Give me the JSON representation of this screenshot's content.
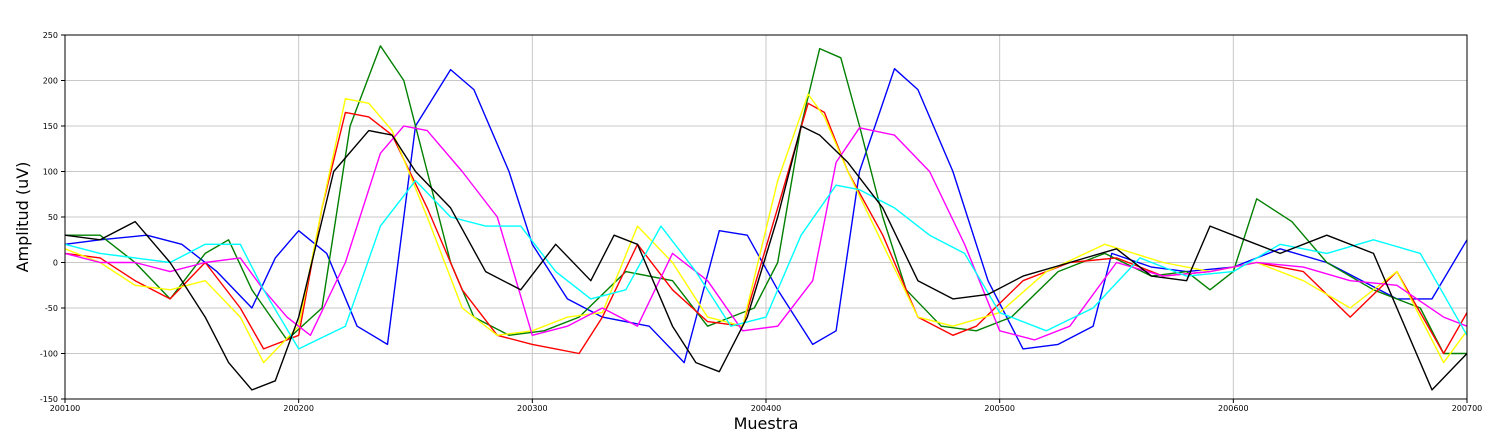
{
  "chart_data": {
    "type": "line",
    "title": "",
    "xlabel": "Muestra",
    "ylabel": "Amplitud (uV)",
    "xlim": [
      200100,
      200700
    ],
    "ylim": [
      -150,
      250
    ],
    "xticks": [
      200100,
      200200,
      200300,
      200400,
      200500,
      200600,
      200700
    ],
    "yticks": [
      -150,
      -100,
      -50,
      0,
      50,
      100,
      150,
      200,
      250
    ],
    "grid": true,
    "legend": "none",
    "series": [
      {
        "color": "#0000ff",
        "x": [
          200100,
          200115,
          200135,
          200150,
          200165,
          200180,
          200190,
          200200,
          200212,
          200225,
          200238,
          200250,
          200265,
          200275,
          200290,
          200300,
          200315,
          200330,
          200350,
          200365,
          200380,
          200392,
          200405,
          200420,
          200430,
          200440,
          200455,
          200465,
          200480,
          200495,
          200510,
          200525,
          200540,
          200548,
          200565,
          200580,
          200600,
          200620,
          200640,
          200655,
          200670,
          200685,
          200700
        ],
        "y": [
          20,
          25,
          30,
          20,
          -10,
          -50,
          5,
          35,
          10,
          -70,
          -90,
          150,
          212,
          190,
          100,
          20,
          -40,
          -60,
          -70,
          -110,
          35,
          30,
          -30,
          -90,
          -75,
          100,
          213,
          190,
          100,
          -20,
          -95,
          -90,
          -70,
          10,
          -5,
          -10,
          -5,
          15,
          0,
          -20,
          -40,
          -40,
          25
        ]
      },
      {
        "color": "#008000",
        "x": [
          200100,
          200115,
          200130,
          200145,
          200160,
          200170,
          200180,
          200195,
          200210,
          200222,
          200235,
          200245,
          200255,
          200265,
          200275,
          200290,
          200305,
          200320,
          200340,
          200360,
          200375,
          200385,
          200395,
          200405,
          200415,
          200423,
          200432,
          200440,
          200450,
          200460,
          200475,
          200490,
          200505,
          200525,
          200545,
          200565,
          200580,
          200590,
          200600,
          200610,
          200625,
          200640,
          200660,
          200680,
          200690,
          200700
        ],
        "y": [
          30,
          30,
          0,
          -40,
          10,
          25,
          -30,
          -85,
          -50,
          150,
          238,
          200,
          100,
          0,
          -60,
          -80,
          -75,
          -60,
          -10,
          -20,
          -70,
          -60,
          -50,
          0,
          150,
          235,
          225,
          150,
          50,
          -30,
          -70,
          -75,
          -60,
          -10,
          10,
          -15,
          -10,
          -30,
          -10,
          70,
          45,
          0,
          -30,
          -50,
          -100,
          -100
        ]
      },
      {
        "color": "#ff0000",
        "x": [
          200100,
          200115,
          200130,
          200145,
          200160,
          200175,
          200185,
          200200,
          200210,
          200220,
          200230,
          200240,
          200255,
          200270,
          200285,
          200300,
          200310,
          200320,
          200330,
          200345,
          200360,
          200375,
          200390,
          200405,
          200418,
          200425,
          200435,
          200450,
          200465,
          200480,
          200490,
          200510,
          200530,
          200550,
          200570,
          200590,
          200610,
          200630,
          200650,
          200670,
          200690,
          200700
        ],
        "y": [
          10,
          5,
          -20,
          -40,
          0,
          -50,
          -95,
          -80,
          60,
          165,
          160,
          140,
          60,
          -30,
          -80,
          -90,
          -95,
          -100,
          -60,
          20,
          -30,
          -65,
          -70,
          60,
          175,
          165,
          100,
          30,
          -60,
          -80,
          -70,
          -20,
          0,
          5,
          -15,
          -10,
          0,
          -10,
          -60,
          -10,
          -100,
          -55
        ]
      },
      {
        "color": "#ffff00",
        "x": [
          200100,
          200115,
          200130,
          200145,
          200160,
          200175,
          200185,
          200200,
          200210,
          200220,
          200230,
          200240,
          200255,
          200270,
          200285,
          200300,
          200315,
          200330,
          200345,
          200360,
          200375,
          200390,
          200405,
          200418,
          200425,
          200435,
          200450,
          200465,
          200480,
          200500,
          200520,
          200545,
          200570,
          200590,
          200610,
          200630,
          200650,
          200670,
          200690,
          200700
        ],
        "y": [
          15,
          0,
          -25,
          -30,
          -20,
          -60,
          -110,
          -70,
          60,
          180,
          175,
          145,
          50,
          -50,
          -80,
          -75,
          -60,
          -55,
          40,
          0,
          -60,
          -70,
          90,
          185,
          160,
          100,
          20,
          -60,
          -70,
          -55,
          -10,
          20,
          0,
          -10,
          0,
          -20,
          -50,
          -10,
          -110,
          -75
        ]
      },
      {
        "color": "#ff00ff",
        "x": [
          200100,
          200115,
          200130,
          200145,
          200160,
          200175,
          200185,
          200195,
          200205,
          200220,
          200235,
          200245,
          200255,
          200270,
          200285,
          200300,
          200315,
          200330,
          200345,
          200360,
          200375,
          200390,
          200405,
          200420,
          200430,
          200440,
          200455,
          200470,
          200485,
          200500,
          200515,
          200530,
          200550,
          200570,
          200590,
          200610,
          200630,
          200650,
          200670,
          200690,
          200700
        ],
        "y": [
          10,
          0,
          0,
          -10,
          0,
          5,
          -30,
          -60,
          -80,
          0,
          120,
          150,
          145,
          100,
          50,
          -80,
          -70,
          -50,
          -70,
          10,
          -20,
          -75,
          -70,
          -20,
          110,
          148,
          140,
          100,
          20,
          -75,
          -85,
          -70,
          0,
          -15,
          -10,
          0,
          -5,
          -20,
          -25,
          -60,
          -70
        ]
      },
      {
        "color": "#00ffff",
        "x": [
          200100,
          200115,
          200130,
          200145,
          200160,
          200175,
          200185,
          200200,
          200220,
          200235,
          200250,
          200265,
          200280,
          200295,
          200310,
          200325,
          200340,
          200355,
          200370,
          200385,
          200400,
          200415,
          200430,
          200440,
          200455,
          200470,
          200485,
          200500,
          200520,
          200540,
          200560,
          200580,
          200600,
          200620,
          200640,
          200660,
          200680,
          200700
        ],
        "y": [
          20,
          10,
          5,
          0,
          20,
          20,
          -30,
          -95,
          -70,
          40,
          90,
          50,
          40,
          40,
          -10,
          -40,
          -30,
          40,
          -10,
          -70,
          -60,
          30,
          85,
          80,
          60,
          30,
          10,
          -55,
          -75,
          -50,
          5,
          -15,
          -10,
          20,
          10,
          25,
          10,
          -80
        ]
      },
      {
        "color": "#000000",
        "x": [
          200100,
          200115,
          200130,
          200145,
          200160,
          200170,
          200180,
          200190,
          200200,
          200215,
          200230,
          200240,
          200250,
          200265,
          200280,
          200295,
          200310,
          200325,
          200335,
          200345,
          200360,
          200370,
          200380,
          200392,
          200405,
          200415,
          200423,
          200435,
          200450,
          200465,
          200480,
          200495,
          200510,
          200530,
          200550,
          200565,
          200580,
          200590,
          200605,
          200620,
          200640,
          200660,
          200675,
          200685,
          200700
        ],
        "y": [
          30,
          25,
          45,
          0,
          -60,
          -110,
          -140,
          -130,
          -60,
          100,
          145,
          140,
          100,
          60,
          -10,
          -30,
          20,
          -20,
          30,
          20,
          -70,
          -110,
          -120,
          -60,
          50,
          150,
          140,
          110,
          60,
          -20,
          -40,
          -35,
          -15,
          0,
          15,
          -15,
          -20,
          40,
          25,
          10,
          30,
          10,
          -80,
          -140,
          -100
        ]
      }
    ]
  }
}
